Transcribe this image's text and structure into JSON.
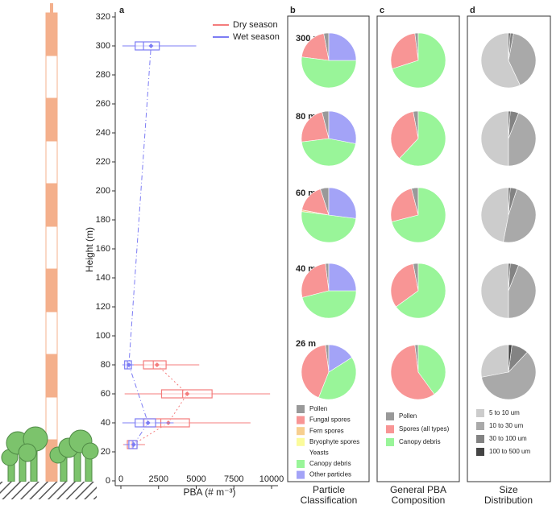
{
  "chart_data": [
    {
      "type": "box",
      "panel": "a",
      "xlabel": "PBA (# m⁻³)",
      "ylabel": "Height (m)",
      "xlim": [
        0,
        10000
      ],
      "ylim": [
        0,
        320
      ],
      "xticks": [
        0,
        2500,
        5000,
        7500,
        10000
      ],
      "yticks": [
        0,
        20,
        40,
        60,
        80,
        100,
        120,
        140,
        160,
        180,
        200,
        220,
        240,
        260,
        280,
        300,
        320
      ],
      "legend": "upper right",
      "series": [
        {
          "name": "Dry season",
          "color": "#f47c7c",
          "y": [
            25,
            40,
            60,
            80
          ],
          "whislo": [
            150,
            250,
            250,
            270
          ],
          "q1": [
            430,
            1550,
            2700,
            1500
          ],
          "med": [
            700,
            2650,
            4100,
            2150
          ],
          "q3": [
            1070,
            4550,
            6050,
            3000
          ],
          "whishi": [
            1600,
            8600,
            9900,
            5200
          ],
          "mean": [
            800,
            3150,
            4400,
            2400
          ]
        },
        {
          "name": "Wet season",
          "color": "#7c7cf4",
          "y": [
            25,
            40,
            80,
            300
          ],
          "whislo": [
            250,
            100,
            100,
            100
          ],
          "q1": [
            530,
            950,
            250,
            950
          ],
          "med": [
            800,
            1500,
            430,
            1500
          ],
          "q3": [
            1070,
            2300,
            700,
            2550
          ],
          "whishi": [
            1200,
            3500,
            850,
            5000
          ],
          "mean": [
            850,
            1800,
            530,
            2000
          ]
        }
      ]
    },
    {
      "type": "pie",
      "panel": "b",
      "caption": [
        "Particle",
        "Classification"
      ],
      "labels": [
        "300 m",
        "80 m",
        "60 m",
        "40 m",
        "26 m"
      ],
      "categories": [
        "Pollen",
        "Fungal spores",
        "Fern spores",
        "Bryophyte spores",
        "Yeasts",
        "Canopy debris",
        "Other particles"
      ],
      "colors": [
        "#999999",
        "#f89595",
        "#f7cf8f",
        "#fbfb9b",
        "#ffffff",
        "#99f599",
        "#a3a3f7"
      ],
      "values": [
        [
          3,
          20,
          0,
          0,
          0,
          52,
          25
        ],
        [
          4,
          23,
          0,
          0,
          0,
          45,
          28
        ],
        [
          5,
          17,
          1,
          0,
          0,
          50,
          27
        ],
        [
          2,
          27,
          0,
          0,
          0,
          46,
          25
        ],
        [
          2,
          42,
          0,
          0,
          0,
          40,
          16
        ]
      ]
    },
    {
      "type": "pie",
      "panel": "c",
      "caption": [
        "General PBA",
        "Composition"
      ],
      "categories": [
        "Pollen",
        "Spores (all types)",
        "Canopy debris"
      ],
      "colors": [
        "#999999",
        "#f89595",
        "#99f599"
      ],
      "values": [
        [
          2,
          28,
          70
        ],
        [
          3,
          35,
          62
        ],
        [
          4,
          25,
          71
        ],
        [
          3,
          32,
          65
        ],
        [
          2,
          58,
          40
        ]
      ]
    },
    {
      "type": "pie",
      "panel": "d",
      "caption": [
        "Size",
        "Distribution"
      ],
      "categories": [
        "5 to 10 um",
        "10 to 30 um",
        "30 to 100 um",
        "100 to 500 um"
      ],
      "colors": [
        "#cccccc",
        "#a9a9a9",
        "#838383",
        "#444444"
      ],
      "values": [
        [
          57,
          40,
          2,
          1
        ],
        [
          50,
          44,
          5,
          1
        ],
        [
          47,
          48,
          4,
          1
        ],
        [
          50,
          44,
          5,
          1
        ],
        [
          28,
          60,
          10,
          2
        ]
      ]
    }
  ]
}
